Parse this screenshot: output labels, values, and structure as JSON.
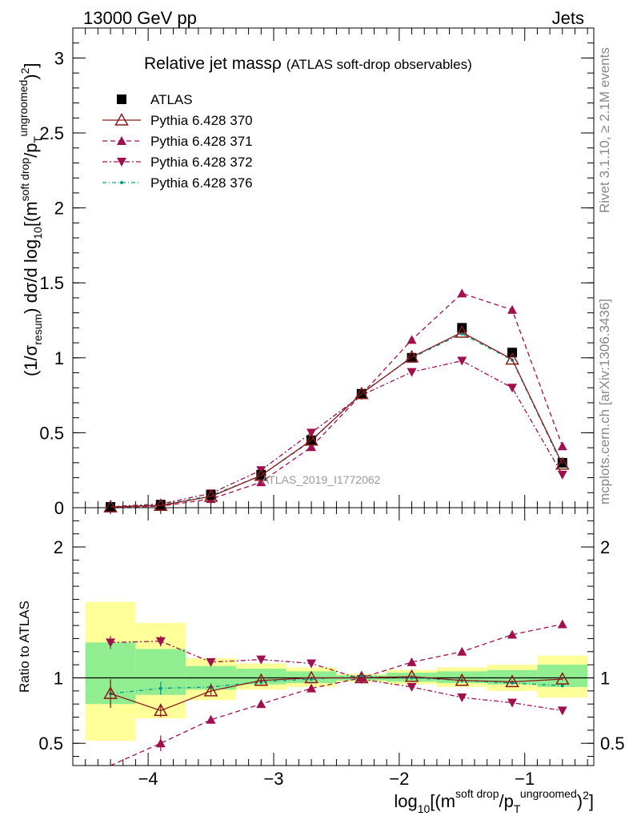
{
  "header": {
    "left": "13000 GeV pp",
    "right": "Jets"
  },
  "title": {
    "main": "Relative jet massρ",
    "sub": "(ATLAS soft-drop observables)"
  },
  "side": {
    "rivet": "Rivet 3.1.10, ≥ 2.1M events",
    "mcplots": "mcplots.cern.ch [arXiv:1306.3436]"
  },
  "watermark": "ATLAS_2019_I1772062",
  "ylabel_main": "(1/σresum) dσ/d log10[(m soft drop/pT ungroomed)2]",
  "ylabel_ratio": "Ratio to ATLAS",
  "xlabel": "log10[(m soft drop/pT ungroomed)2]",
  "colors": {
    "atlas": "#000000",
    "p370": "#8b1a1a",
    "p371": "#a0104f",
    "p372": "#a0104f",
    "p376": "#00998a",
    "band_inner": "#90ee90",
    "band_outer": "#ffff99"
  },
  "chart_data": [
    {
      "type": "scatter",
      "title": "Relative jet massρ (ATLAS soft-drop observables)",
      "xlim": [
        -4.6,
        -0.45
      ],
      "ylim": [
        0,
        3.2
      ],
      "xticks": [
        -4,
        -3,
        -2,
        -1
      ],
      "yticks": [
        0,
        0.5,
        1,
        1.5,
        2,
        2.5,
        3
      ],
      "x": [
        -4.3,
        -3.9,
        -3.5,
        -3.1,
        -2.7,
        -2.3,
        -1.9,
        -1.5,
        -1.1,
        -0.7
      ],
      "legend_position": "top-left",
      "series": [
        {
          "name": "ATLAS",
          "marker": "square",
          "values": [
            0.005,
            0.02,
            0.085,
            0.22,
            0.45,
            0.76,
            1.0,
            1.2,
            1.035,
            0.3
          ]
        },
        {
          "name": "Pythia 6.428 370",
          "marker": "open-triangle",
          "values": [
            0.005,
            0.015,
            0.075,
            0.215,
            0.45,
            0.76,
            1.005,
            1.17,
            0.99,
            0.29
          ]
        },
        {
          "name": "Pythia 6.428 371",
          "marker": "triangle-up",
          "values": [
            0.003,
            0.01,
            0.058,
            0.17,
            0.405,
            0.755,
            1.12,
            1.43,
            1.32,
            0.41
          ]
        },
        {
          "name": "Pythia 6.428 372",
          "marker": "triangle-down",
          "values": [
            0.007,
            0.025,
            0.095,
            0.25,
            0.5,
            0.75,
            0.905,
            0.98,
            0.8,
            0.22
          ]
        },
        {
          "name": "Pythia 6.428 376",
          "marker": "dot",
          "values": [
            0.005,
            0.018,
            0.08,
            0.215,
            0.445,
            0.765,
            1.0,
            1.16,
            0.985,
            0.28
          ]
        }
      ]
    },
    {
      "type": "scatter",
      "title": "",
      "ylabel": "Ratio to ATLAS",
      "xlim": [
        -4.6,
        -0.45
      ],
      "ylim": [
        0.33,
        2.3
      ],
      "yticks": [
        0.5,
        1,
        2
      ],
      "x": [
        -4.3,
        -3.9,
        -3.5,
        -3.1,
        -2.7,
        -2.3,
        -1.9,
        -1.5,
        -1.1,
        -0.7
      ],
      "bands": {
        "edges": [
          -4.5,
          -4.1,
          -3.7,
          -3.3,
          -2.9,
          -2.5,
          -2.1,
          -1.7,
          -1.3,
          -0.9,
          -0.5
        ],
        "inner_lo": [
          0.8,
          0.87,
          0.91,
          0.95,
          0.96,
          0.98,
          0.97,
          0.96,
          0.95,
          0.93
        ],
        "inner_hi": [
          1.27,
          1.22,
          1.09,
          1.07,
          1.05,
          1.02,
          1.04,
          1.05,
          1.06,
          1.1
        ],
        "outer_lo": [
          0.52,
          0.69,
          0.83,
          0.91,
          0.93,
          0.97,
          0.95,
          0.93,
          0.9,
          0.85
        ],
        "outer_hi": [
          1.58,
          1.42,
          1.15,
          1.11,
          1.08,
          1.03,
          1.06,
          1.08,
          1.1,
          1.17
        ]
      },
      "series": [
        {
          "name": "Pythia 6.428 370",
          "values": [
            0.88,
            0.75,
            0.9,
            0.98,
            1.0,
            1.0,
            1.01,
            0.98,
            0.97,
            0.99
          ],
          "errors": [
            0.11,
            0.05,
            0.03,
            0.02,
            0.01,
            0.01,
            0.01,
            0.01,
            0.01,
            0.01
          ]
        },
        {
          "name": "Pythia 6.428 371",
          "values": [
            0.3,
            0.5,
            0.68,
            0.8,
            0.92,
            1.0,
            1.12,
            1.2,
            1.33,
            1.41
          ],
          "errors": [
            0.05,
            0.06,
            0.03,
            0.01,
            0.01,
            0.01,
            0.01,
            0.01,
            0.01,
            0.01
          ]
        },
        {
          "name": "Pythia 6.428 372",
          "values": [
            1.27,
            1.28,
            1.12,
            1.14,
            1.11,
            0.99,
            0.93,
            0.85,
            0.81,
            0.75
          ],
          "errors": [
            0.05,
            0.04,
            0.02,
            0.01,
            0.01,
            0.01,
            0.01,
            0.01,
            0.01,
            0.01
          ]
        },
        {
          "name": "Pythia 6.428 376",
          "values": [
            0.88,
            0.92,
            0.93,
            0.97,
            0.99,
            1.01,
            1.0,
            0.98,
            0.96,
            0.94
          ],
          "errors": [
            0.1,
            0.05,
            0.03,
            0.02,
            0.01,
            0.01,
            0.01,
            0.01,
            0.01,
            0.01
          ]
        }
      ]
    }
  ]
}
